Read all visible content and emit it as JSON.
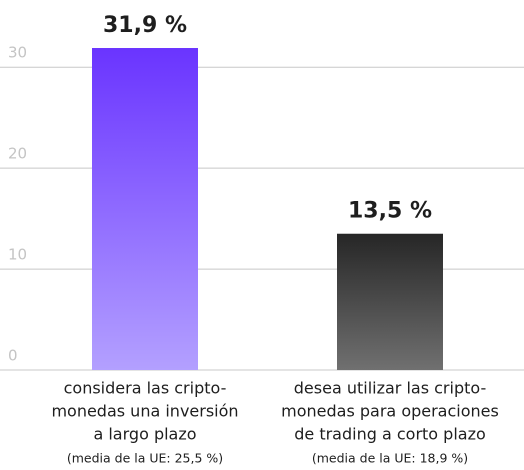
{
  "chart_data": {
    "type": "bar",
    "categories": [
      [
        "considera las cripto-",
        "monedas una inversión",
        "a largo plazo"
      ],
      [
        "desea utilizar las cripto-",
        "monedas para operaciones",
        "de trading a corto plazo"
      ]
    ],
    "notes": [
      "(media de la UE: 25,5 %)",
      "(media de la UE: 18,9 %)"
    ],
    "values": [
      31.9,
      13.5
    ],
    "value_labels": [
      "31,9 %",
      "13,5 %"
    ],
    "colors": [
      {
        "top": "#6a34ff",
        "bottom": "#b3a0ff"
      },
      {
        "top": "#262626",
        "bottom": "#707070"
      }
    ],
    "ylim": [
      0,
      32
    ],
    "yticks": [
      0,
      10,
      20,
      30
    ],
    "grid": true
  }
}
